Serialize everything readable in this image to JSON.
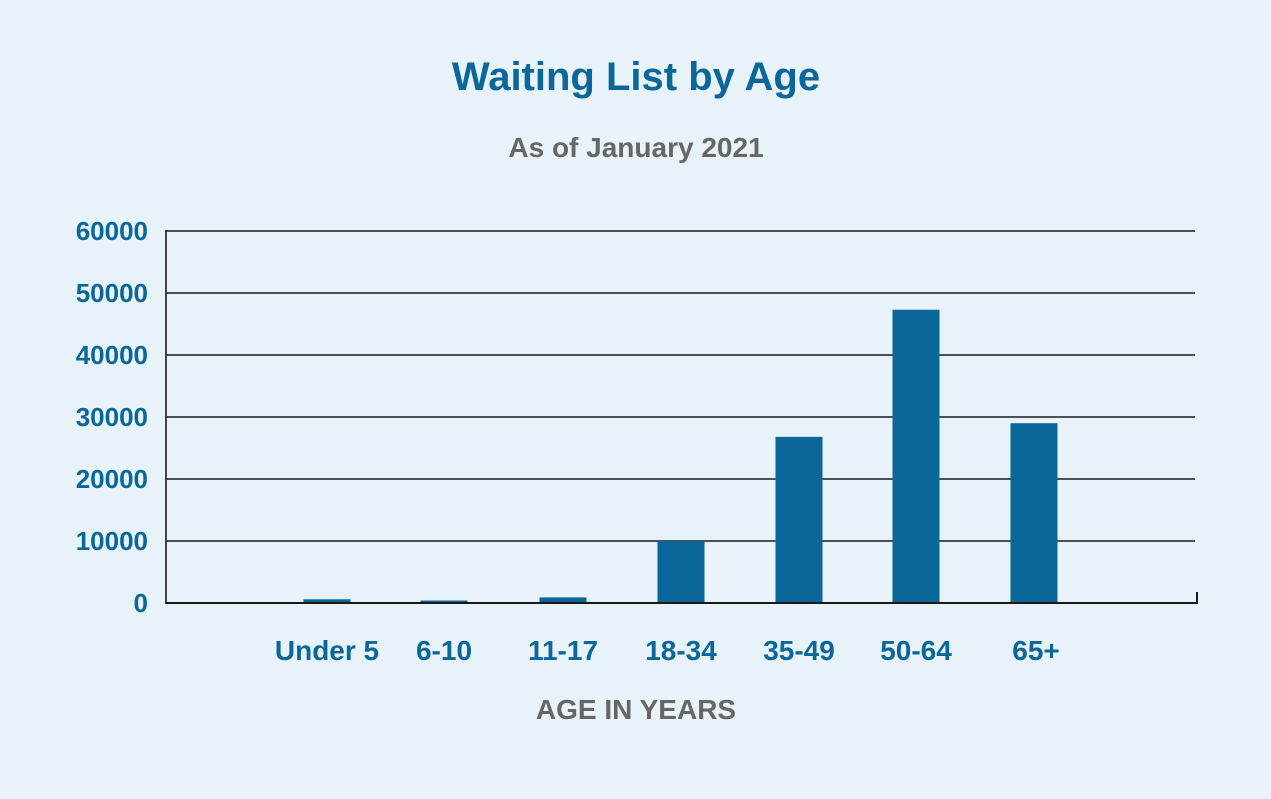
{
  "colors": {
    "background": "#e8f3f9",
    "bar": "#0b6699",
    "title": "#0b6699",
    "subtitle": "#666666",
    "tick": "#0b6699",
    "xlabel": "#666666",
    "grid": "#1a1a1a"
  },
  "chart_data": {
    "type": "bar",
    "title": "Waiting List by Age",
    "subtitle": "As of January 2021",
    "xlabel": "AGE IN YEARS",
    "ylabel": "",
    "categories": [
      "Under 5",
      "6-10",
      "11-17",
      "18-34",
      "35-49",
      "50-64",
      "65+"
    ],
    "values": [
      600,
      400,
      900,
      10000,
      26800,
      47300,
      29000
    ],
    "ylim": [
      0,
      60000
    ],
    "yticks": [
      "0",
      "10000",
      "20000",
      "30000",
      "40000",
      "50000",
      "60000"
    ],
    "grid": true,
    "legend": "none"
  }
}
